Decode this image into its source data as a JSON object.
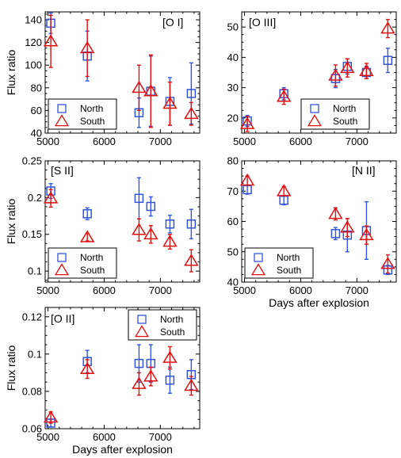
{
  "colors": {
    "north": "#3355dd",
    "south": "#e01010",
    "axis": "#000000"
  },
  "legend": {
    "north_label": "North",
    "south_label": "South"
  },
  "chart_data": [
    {
      "type": "scatter",
      "title": "[O I]",
      "ylabel": "Flux ratio",
      "xlabel": "",
      "xlim": [
        4950,
        7700
      ],
      "ylim": [
        40,
        147
      ],
      "xticks": [
        5000,
        6000,
        7000
      ],
      "yticks": [
        40,
        60,
        80,
        100,
        120,
        140
      ],
      "yticklabels": [
        "40",
        "60",
        "80",
        "100",
        "120",
        "140"
      ],
      "legend_position": "bottom-left",
      "series": [
        {
          "name": "North",
          "marker": "square",
          "x": [
            5050,
            5700,
            6620,
            6830,
            7170,
            7550
          ],
          "y": [
            137,
            108,
            58,
            77,
            68,
            75
          ],
          "err": [
            9,
            22,
            13,
            31,
            21,
            27
          ]
        },
        {
          "name": "South",
          "marker": "triangle",
          "x": [
            5050,
            5700,
            6620,
            6830,
            7170,
            7550
          ],
          "y": [
            121,
            115,
            80,
            77,
            66,
            57
          ],
          "err": [
            23,
            25,
            20,
            32,
            19,
            10
          ]
        }
      ]
    },
    {
      "type": "scatter",
      "title": "[O III]",
      "ylabel": "",
      "xlabel": "",
      "xlim": [
        4950,
        7700
      ],
      "ylim": [
        15,
        55
      ],
      "xticks": [
        5000,
        6000,
        7000
      ],
      "yticks": [
        20,
        30,
        40,
        50
      ],
      "yticklabels": [
        "20",
        "30",
        "40",
        "50"
      ],
      "legend_position": "bottom-right",
      "series": [
        {
          "name": "North",
          "marker": "square",
          "x": [
            5050,
            5700,
            6620,
            6830,
            7170,
            7550
          ],
          "y": [
            19,
            28,
            33,
            37,
            35,
            39
          ],
          "err": [
            1.8,
            2,
            3,
            2.5,
            2,
            4
          ]
        },
        {
          "name": "South",
          "marker": "triangle",
          "x": [
            5050,
            5700,
            6620,
            6830,
            7170,
            7550
          ],
          "y": [
            18,
            27,
            34,
            36.5,
            35.5,
            49.5
          ],
          "err": [
            2.5,
            2.5,
            3.5,
            3,
            2.5,
            3
          ]
        }
      ]
    },
    {
      "type": "scatter",
      "title": "[S II]",
      "ylabel": "Flux ratio",
      "xlabel": "",
      "xlim": [
        4950,
        7700
      ],
      "ylim": [
        0.085,
        0.25
      ],
      "xticks": [
        5000,
        6000,
        7000
      ],
      "yticks": [
        0.1,
        0.15,
        0.2,
        0.25
      ],
      "yticklabels": [
        "0.1",
        "0.15",
        "0.2",
        "0.25"
      ],
      "legend_position": "bottom-left",
      "series": [
        {
          "name": "North",
          "marker": "square",
          "x": [
            5050,
            5700,
            6620,
            6830,
            7170,
            7550
          ],
          "y": [
            0.209,
            0.178,
            0.199,
            0.188,
            0.164,
            0.164
          ],
          "err": [
            0.01,
            0.008,
            0.028,
            0.013,
            0.012,
            0.02
          ]
        },
        {
          "name": "South",
          "marker": "triangle",
          "x": [
            5050,
            5700,
            6620,
            6830,
            7170,
            7550
          ],
          "y": [
            0.199,
            0.146,
            0.156,
            0.15,
            0.14,
            0.114
          ],
          "err": [
            0.012,
            0.005,
            0.015,
            0.012,
            0.01,
            0.015
          ]
        }
      ]
    },
    {
      "type": "scatter",
      "title": "[N II]",
      "ylabel": "",
      "xlabel": "Days after explosion",
      "xlim": [
        4950,
        7700
      ],
      "ylim": [
        40,
        80
      ],
      "xticks": [
        5000,
        6000,
        7000
      ],
      "yticks": [
        40,
        50,
        60,
        70,
        80
      ],
      "yticklabels": [
        "40",
        "50",
        "60",
        "70",
        "80"
      ],
      "legend_position": "bottom-left",
      "series": [
        {
          "name": "North",
          "marker": "square",
          "x": [
            5050,
            5700,
            6620,
            6830,
            7170,
            7550
          ],
          "y": [
            70.5,
            67,
            56,
            55.5,
            57,
            44
          ],
          "err": [
            1.5,
            1.5,
            2,
            5.5,
            9.5,
            1.5
          ]
        },
        {
          "name": "South",
          "marker": "triangle",
          "x": [
            5050,
            5700,
            6620,
            6830,
            7170,
            7550
          ],
          "y": [
            73.5,
            70,
            62.5,
            58,
            55.5,
            46
          ],
          "err": [
            1.5,
            1.5,
            2,
            3,
            3,
            3
          ]
        }
      ]
    },
    {
      "type": "scatter",
      "title": "[O II]",
      "ylabel": "Flux ratio",
      "xlabel": "Days after explosion",
      "xlim": [
        4950,
        7700
      ],
      "ylim": [
        0.06,
        0.125
      ],
      "xticks": [
        5000,
        6000,
        7000
      ],
      "yticks": [
        0.06,
        0.08,
        0.1,
        0.12
      ],
      "yticklabels": [
        "0.06",
        "0.08",
        "0.1",
        "0.12"
      ],
      "legend_position": "top-right",
      "series": [
        {
          "name": "North",
          "marker": "square",
          "x": [
            5050,
            5700,
            6620,
            6830,
            7170,
            7550
          ],
          "y": [
            0.063,
            0.096,
            0.095,
            0.095,
            0.086,
            0.089
          ],
          "err": [
            0.002,
            0.006,
            0.01,
            0.01,
            0.007,
            0.008
          ]
        },
        {
          "name": "South",
          "marker": "triangle",
          "x": [
            5050,
            5700,
            6620,
            6830,
            7170,
            7550
          ],
          "y": [
            0.066,
            0.092,
            0.084,
            0.088,
            0.098,
            0.083
          ],
          "err": [
            0.003,
            0.005,
            0.006,
            0.005,
            0.006,
            0.005
          ]
        }
      ]
    }
  ]
}
